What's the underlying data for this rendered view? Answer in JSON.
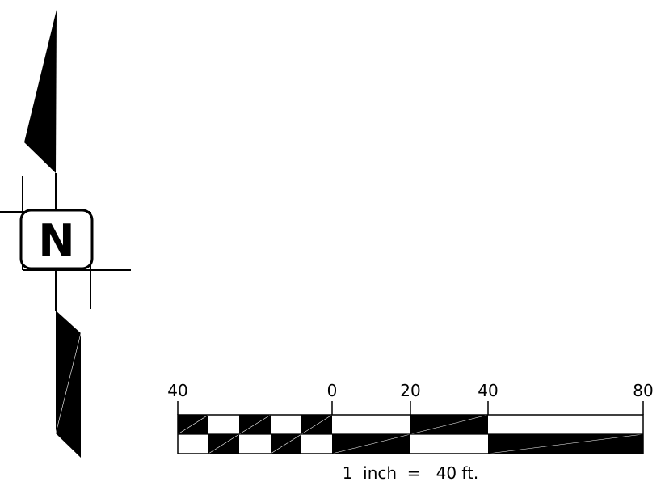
{
  "north_arrow": {
    "letter": "N",
    "icon": "north-arrow-icon"
  },
  "scale_bar": {
    "tick_labels": [
      "40",
      "0",
      "20",
      "40",
      "80"
    ],
    "caption": "1  inch  =   40 ft.",
    "units": "ft",
    "ratio_text": "1 inch = 40 ft."
  },
  "colors": {
    "ink": "#000000",
    "paper": "#ffffff"
  }
}
